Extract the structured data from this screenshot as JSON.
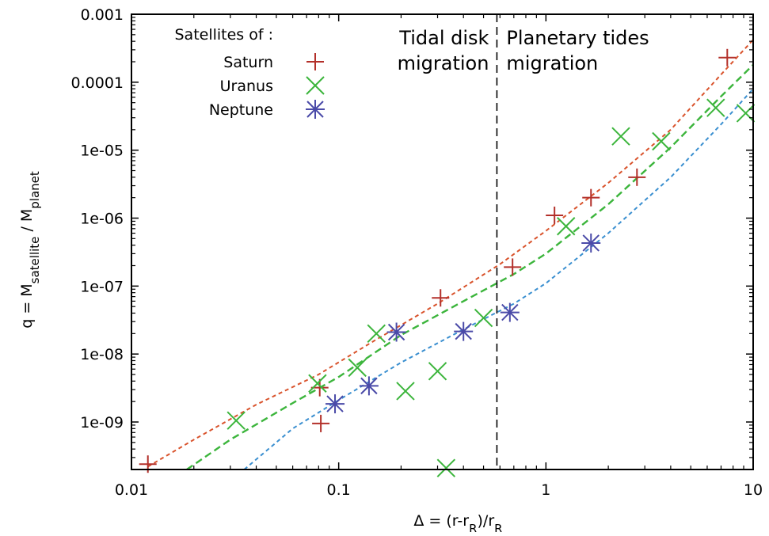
{
  "chart_data": {
    "type": "scatter",
    "title": "",
    "xlabel": {
      "prefix": "Δ = (r-r",
      "sub1": "R",
      "middle": ")/r",
      "sub2": "R"
    },
    "ylabel": {
      "prefix": "q = M",
      "sub1": "satellite",
      "middle": " / M",
      "sub2": "planet"
    },
    "xscale": "log",
    "yscale": "log",
    "xlim": [
      0.01,
      10
    ],
    "ylim": [
      2e-10,
      0.001
    ],
    "x_ticks": [
      {
        "value": 0.01,
        "label": "0.01"
      },
      {
        "value": 0.1,
        "label": "0.1"
      },
      {
        "value": 1,
        "label": "1"
      },
      {
        "value": 10,
        "label": "10"
      }
    ],
    "y_ticks": [
      {
        "value": 1e-09,
        "label": "1e-09"
      },
      {
        "value": 1e-08,
        "label": "1e-08"
      },
      {
        "value": 1e-07,
        "label": "1e-07"
      },
      {
        "value": 1e-06,
        "label": "1e-06"
      },
      {
        "value": 1e-05,
        "label": "1e-05"
      },
      {
        "value": 0.0001,
        "label": "0.0001"
      },
      {
        "value": 0.001,
        "label": "0.001"
      }
    ],
    "legend": {
      "title": "Satellites of :",
      "position": "top-left"
    },
    "series": [
      {
        "name": "Saturn",
        "marker": "plus",
        "color": "#b3302a",
        "points": [
          [
            0.012,
            2.4e-10
          ],
          [
            0.081,
            3.2e-09
          ],
          [
            0.082,
            9.5e-10
          ],
          [
            0.31,
            6.7e-08
          ],
          [
            0.69,
            1.9e-07
          ],
          [
            1.1,
            1.1e-06
          ],
          [
            1.65,
            2e-06
          ],
          [
            2.75,
            4e-06
          ],
          [
            7.5,
            0.00023
          ]
        ]
      },
      {
        "name": "Uranus",
        "marker": "x",
        "color": "#3cb53c",
        "points": [
          [
            0.032,
            1.05e-09
          ],
          [
            0.079,
            3.7e-09
          ],
          [
            0.123,
            6.3e-09
          ],
          [
            0.152,
            2e-08
          ],
          [
            0.21,
            2.85e-09
          ],
          [
            0.3,
            5.6e-09
          ],
          [
            0.33,
            2.1e-10
          ],
          [
            0.5,
            3.4e-08
          ],
          [
            1.25,
            7.6e-07
          ],
          [
            2.3,
            1.6e-05
          ],
          [
            3.6,
            1.35e-05
          ],
          [
            6.6,
            4.2e-05
          ],
          [
            9.2,
            3.5e-05
          ]
        ]
      },
      {
        "name": "Neptune",
        "marker": "star",
        "color": "#4a4aa8",
        "points": [
          [
            0.096,
            1.85e-09
          ],
          [
            0.14,
            3.4e-09
          ],
          [
            0.19,
            2.1e-08
          ],
          [
            0.4,
            2.15e-08
          ],
          [
            0.67,
            4.1e-08
          ],
          [
            1.65,
            4.3e-07
          ]
        ]
      }
    ],
    "fit_curves": [
      {
        "color": "#d9532c",
        "dash": "short",
        "points": [
          [
            0.012,
            2.2e-10
          ],
          [
            0.02,
            5.5e-10
          ],
          [
            0.04,
            1.8e-09
          ],
          [
            0.08,
            5e-09
          ],
          [
            0.15,
            1.6e-08
          ],
          [
            0.3,
            5.5e-08
          ],
          [
            0.6,
            2.1e-07
          ],
          [
            1.0,
            6.5e-07
          ],
          [
            2.0,
            3.3e-06
          ],
          [
            4.0,
            2e-05
          ],
          [
            7.0,
            0.00013
          ],
          [
            10.0,
            0.00042
          ]
        ]
      },
      {
        "color": "#3cb53c",
        "dash": "long",
        "points": [
          [
            0.0185,
            2e-10
          ],
          [
            0.03,
            5.5e-10
          ],
          [
            0.06,
            1.9e-09
          ],
          [
            0.1,
            4.6e-09
          ],
          [
            0.2,
            1.9e-08
          ],
          [
            0.4,
            6e-08
          ],
          [
            0.7,
            1.5e-07
          ],
          [
            1.0,
            3e-07
          ],
          [
            2.0,
            1.6e-06
          ],
          [
            4.0,
            1.1e-05
          ],
          [
            7.0,
            6.2e-05
          ],
          [
            10.0,
            0.00018
          ]
        ]
      },
      {
        "color": "#3a8fd0",
        "dash": "short",
        "points": [
          [
            0.035,
            2e-10
          ],
          [
            0.06,
            8e-10
          ],
          [
            0.1,
            2.1e-09
          ],
          [
            0.2,
            7.5e-09
          ],
          [
            0.4,
            2.3e-08
          ],
          [
            0.7,
            5.5e-08
          ],
          [
            1.0,
            1.1e-07
          ],
          [
            2.0,
            6e-07
          ],
          [
            4.0,
            4e-06
          ],
          [
            7.0,
            2.4e-05
          ],
          [
            10.0,
            8e-05
          ]
        ]
      }
    ],
    "vertical_line": {
      "x": 0.58,
      "style": "dashed",
      "color": "#000000"
    },
    "annotations": [
      {
        "lines": [
          "Tidal disk",
          "migration"
        ],
        "side": "left"
      },
      {
        "lines": [
          "Planetary tides",
          "migration"
        ],
        "side": "right"
      }
    ],
    "grid": false
  }
}
